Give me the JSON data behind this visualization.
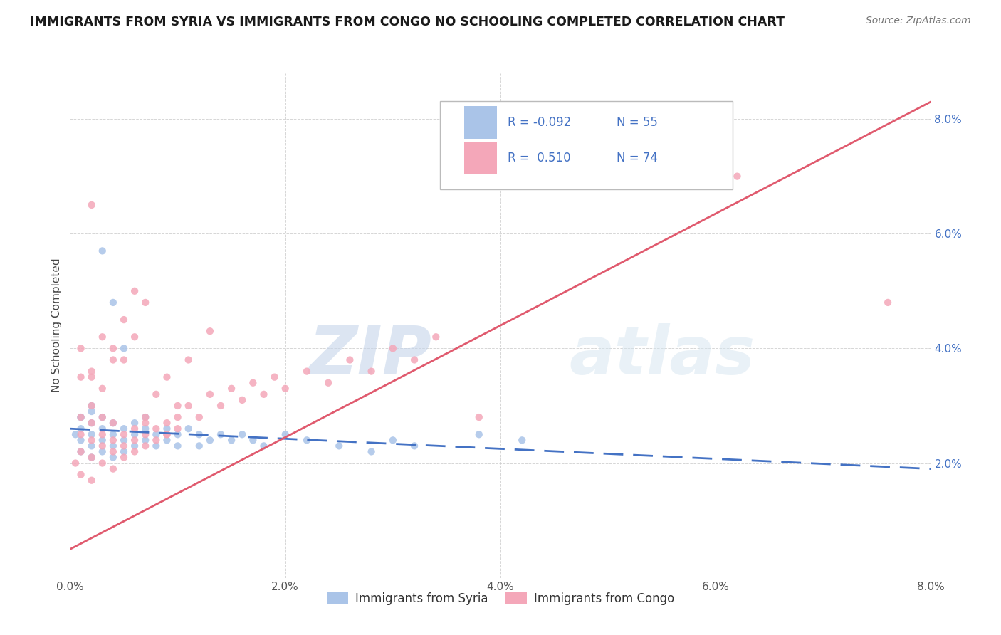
{
  "title": "IMMIGRANTS FROM SYRIA VS IMMIGRANTS FROM CONGO NO SCHOOLING COMPLETED CORRELATION CHART",
  "source": "Source: ZipAtlas.com",
  "ylabel": "No Schooling Completed",
  "xlim": [
    0.0,
    0.08
  ],
  "ylim": [
    0.0,
    0.088
  ],
  "xtick_vals": [
    0.0,
    0.02,
    0.04,
    0.06,
    0.08
  ],
  "ytick_vals": [
    0.02,
    0.04,
    0.06,
    0.08
  ],
  "syria_color": "#aac4e8",
  "congo_color": "#f4a7b9",
  "syria_line_color": "#4472c4",
  "congo_line_color": "#e05a6e",
  "R_syria": -0.092,
  "N_syria": 55,
  "R_congo": 0.51,
  "N_congo": 74,
  "watermark_zip": "ZIP",
  "watermark_atlas": "atlas",
  "legend_syria": "Immigrants from Syria",
  "legend_congo": "Immigrants from Congo",
  "syria_x": [
    0.0005,
    0.001,
    0.001,
    0.001,
    0.001,
    0.002,
    0.002,
    0.002,
    0.002,
    0.002,
    0.003,
    0.003,
    0.003,
    0.003,
    0.004,
    0.004,
    0.004,
    0.004,
    0.005,
    0.005,
    0.005,
    0.006,
    0.006,
    0.006,
    0.007,
    0.007,
    0.007,
    0.008,
    0.008,
    0.009,
    0.009,
    0.01,
    0.01,
    0.011,
    0.012,
    0.012,
    0.013,
    0.014,
    0.015,
    0.016,
    0.017,
    0.018,
    0.02,
    0.022,
    0.025,
    0.028,
    0.03,
    0.032,
    0.038,
    0.042,
    0.001,
    0.002,
    0.003,
    0.004,
    0.005
  ],
  "syria_y": [
    0.025,
    0.024,
    0.026,
    0.028,
    0.022,
    0.025,
    0.027,
    0.023,
    0.029,
    0.021,
    0.026,
    0.024,
    0.028,
    0.022,
    0.025,
    0.027,
    0.023,
    0.021,
    0.026,
    0.024,
    0.022,
    0.025,
    0.027,
    0.023,
    0.026,
    0.024,
    0.028,
    0.025,
    0.023,
    0.026,
    0.024,
    0.025,
    0.023,
    0.026,
    0.025,
    0.023,
    0.024,
    0.025,
    0.024,
    0.025,
    0.024,
    0.023,
    0.025,
    0.024,
    0.023,
    0.022,
    0.024,
    0.023,
    0.025,
    0.024,
    0.028,
    0.03,
    0.057,
    0.048,
    0.04
  ],
  "congo_x": [
    0.0005,
    0.001,
    0.001,
    0.001,
    0.001,
    0.002,
    0.002,
    0.002,
    0.002,
    0.002,
    0.003,
    0.003,
    0.003,
    0.003,
    0.004,
    0.004,
    0.004,
    0.004,
    0.005,
    0.005,
    0.005,
    0.006,
    0.006,
    0.006,
    0.007,
    0.007,
    0.007,
    0.008,
    0.008,
    0.009,
    0.009,
    0.01,
    0.01,
    0.011,
    0.012,
    0.013,
    0.014,
    0.015,
    0.016,
    0.017,
    0.018,
    0.019,
    0.02,
    0.022,
    0.024,
    0.026,
    0.028,
    0.03,
    0.032,
    0.034,
    0.001,
    0.002,
    0.003,
    0.004,
    0.005,
    0.006,
    0.007,
    0.009,
    0.011,
    0.013,
    0.001,
    0.002,
    0.003,
    0.004,
    0.005,
    0.006,
    0.007,
    0.008,
    0.009,
    0.01,
    0.038,
    0.062,
    0.076,
    0.002
  ],
  "congo_y": [
    0.02,
    0.022,
    0.025,
    0.028,
    0.018,
    0.024,
    0.027,
    0.021,
    0.03,
    0.017,
    0.025,
    0.023,
    0.028,
    0.02,
    0.024,
    0.027,
    0.022,
    0.019,
    0.025,
    0.023,
    0.021,
    0.026,
    0.024,
    0.022,
    0.025,
    0.027,
    0.023,
    0.026,
    0.024,
    0.027,
    0.025,
    0.028,
    0.026,
    0.03,
    0.028,
    0.032,
    0.03,
    0.033,
    0.031,
    0.034,
    0.032,
    0.035,
    0.033,
    0.036,
    0.034,
    0.038,
    0.036,
    0.04,
    0.038,
    0.042,
    0.04,
    0.035,
    0.042,
    0.038,
    0.045,
    0.05,
    0.048,
    0.035,
    0.038,
    0.043,
    0.035,
    0.036,
    0.033,
    0.04,
    0.038,
    0.042,
    0.028,
    0.032,
    0.025,
    0.03,
    0.028,
    0.07,
    0.048,
    0.065
  ],
  "syria_line_x": [
    0.0,
    0.08
  ],
  "syria_line_y": [
    0.026,
    0.019
  ],
  "congo_line_x": [
    0.0,
    0.08
  ],
  "congo_line_y": [
    0.005,
    0.083
  ]
}
